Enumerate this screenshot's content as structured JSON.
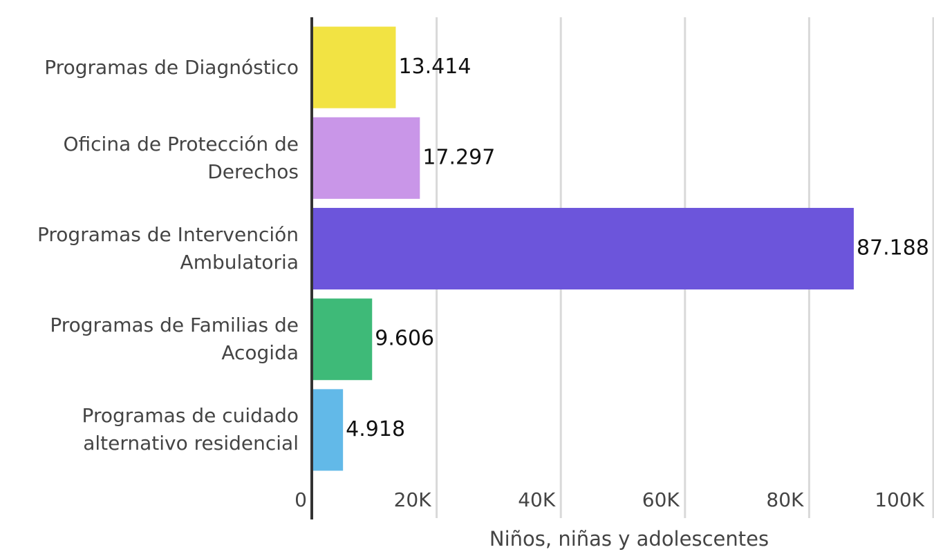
{
  "chart_data": {
    "type": "bar",
    "orientation": "horizontal",
    "categories": [
      "Programas de Diagnóstico",
      "Oficina de Protección de Derechos",
      "Programas de Intervención Ambulatoria",
      "Programas de Familias de Acogida",
      "Programas de cuidado alternativo residencial"
    ],
    "values": [
      13414,
      17297,
      87188,
      9606,
      4918
    ],
    "value_labels": [
      "13.414",
      "17.297",
      "87.188",
      "9.606",
      "4.918"
    ],
    "colors": [
      "#f2e343",
      "#c996e8",
      "#6c55db",
      "#3eba78",
      "#62b9e8"
    ],
    "xlabel": "Niños, niñas y adolescentes",
    "xlim": [
      0,
      100000
    ],
    "xticks": [
      0,
      {
        "value": 20000,
        "label": "20K"
      },
      {
        "value": 40000,
        "label": "40K"
      },
      {
        "value": 60000,
        "label": "60K"
      },
      {
        "value": 80000,
        "label": "80K"
      },
      {
        "value": 100000,
        "label": "100K"
      }
    ],
    "grid": true
  }
}
